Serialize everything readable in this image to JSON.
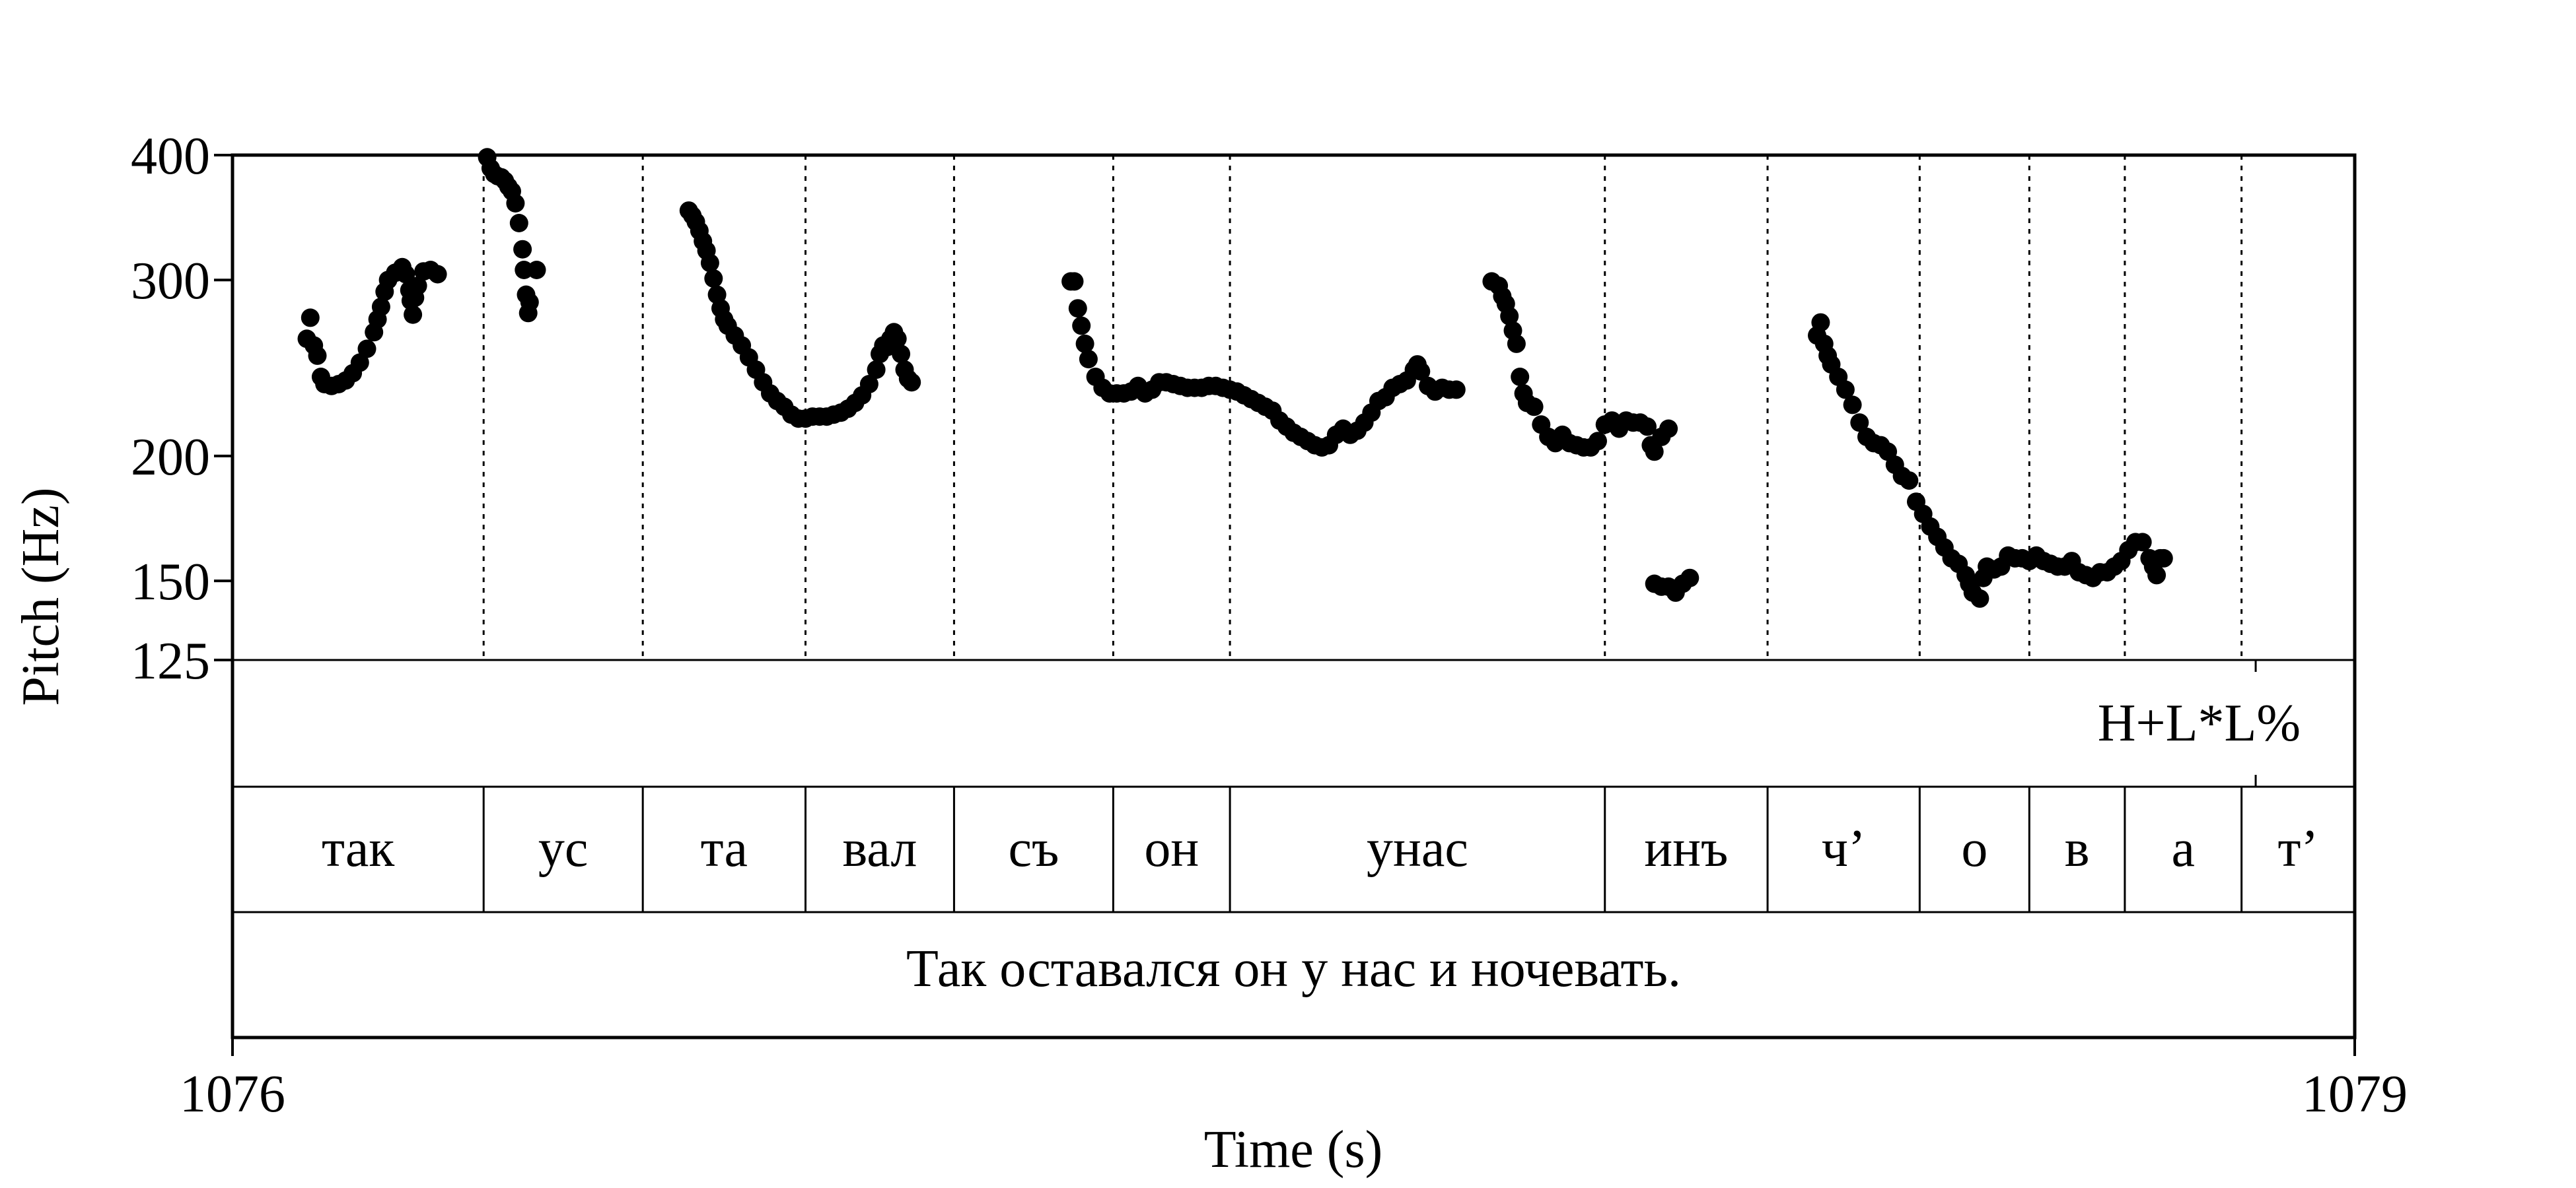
{
  "chart_data": {
    "type": "scatter",
    "xlabel": "Time (s)",
    "ylabel": "Pitch (Hz)",
    "xlim": [
      1076,
      1079
    ],
    "ylim": [
      125,
      400
    ],
    "y_scale": "log",
    "x_ticks": [
      "1076",
      "1079"
    ],
    "y_ticks": [
      {
        "value": 400,
        "label": "400"
      },
      {
        "value": 300,
        "label": "300"
      },
      {
        "value": 200,
        "label": "200"
      },
      {
        "value": 150,
        "label": "150"
      },
      {
        "value": 125,
        "label": "125"
      }
    ],
    "grid": false,
    "series": [
      {
        "points": [
          [
            1076.105,
            262
          ],
          [
            1076.11,
            275
          ],
          [
            1076.115,
            258
          ],
          [
            1076.12,
            252
          ],
          [
            1076.125,
            240
          ],
          [
            1076.13,
            236
          ],
          [
            1076.14,
            235
          ],
          [
            1076.15,
            236
          ],
          [
            1076.16,
            238
          ],
          [
            1076.17,
            242
          ],
          [
            1076.18,
            248
          ],
          [
            1076.19,
            256
          ],
          [
            1076.2,
            266
          ],
          [
            1076.205,
            274
          ],
          [
            1076.21,
            282
          ],
          [
            1076.215,
            292
          ],
          [
            1076.22,
            300
          ],
          [
            1076.23,
            305
          ],
          [
            1076.24,
            309
          ],
          [
            1076.245,
            304
          ],
          [
            1076.25,
            293
          ],
          [
            1076.252,
            286
          ],
          [
            1076.255,
            277
          ],
          [
            1076.258,
            288
          ],
          [
            1076.262,
            296
          ],
          [
            1076.27,
            306
          ],
          [
            1076.28,
            307
          ],
          [
            1076.29,
            304
          ],
          [
            1076.36,
            398
          ],
          [
            1076.365,
            388
          ],
          [
            1076.37,
            383
          ],
          [
            1076.375,
            381
          ],
          [
            1076.38,
            380
          ],
          [
            1076.385,
            377
          ],
          [
            1076.39,
            372
          ],
          [
            1076.395,
            368
          ],
          [
            1076.4,
            358
          ],
          [
            1076.405,
            342
          ],
          [
            1076.41,
            322
          ],
          [
            1076.412,
            307
          ],
          [
            1076.415,
            290
          ],
          [
            1076.418,
            278
          ],
          [
            1076.42,
            285
          ],
          [
            1076.43,
            307
          ],
          [
            1076.645,
            352
          ],
          [
            1076.65,
            348
          ],
          [
            1076.655,
            343
          ],
          [
            1076.66,
            336
          ],
          [
            1076.665,
            328
          ],
          [
            1076.67,
            321
          ],
          [
            1076.675,
            312
          ],
          [
            1076.68,
            301
          ],
          [
            1076.685,
            290
          ],
          [
            1076.69,
            281
          ],
          [
            1076.695,
            274
          ],
          [
            1076.7,
            270
          ],
          [
            1076.71,
            264
          ],
          [
            1076.72,
            258
          ],
          [
            1076.73,
            251
          ],
          [
            1076.74,
            244
          ],
          [
            1076.75,
            237
          ],
          [
            1076.76,
            231
          ],
          [
            1076.77,
            227
          ],
          [
            1076.78,
            224
          ],
          [
            1076.79,
            220
          ],
          [
            1076.8,
            218
          ],
          [
            1076.81,
            218
          ],
          [
            1076.82,
            219
          ],
          [
            1076.83,
            219
          ],
          [
            1076.84,
            219
          ],
          [
            1076.85,
            220
          ],
          [
            1076.86,
            221
          ],
          [
            1076.87,
            223
          ],
          [
            1076.88,
            226
          ],
          [
            1076.89,
            230
          ],
          [
            1076.9,
            236
          ],
          [
            1076.91,
            244
          ],
          [
            1076.915,
            253
          ],
          [
            1076.92,
            258
          ],
          [
            1076.925,
            257
          ],
          [
            1076.93,
            262
          ],
          [
            1076.935,
            266
          ],
          [
            1076.94,
            262
          ],
          [
            1076.945,
            253
          ],
          [
            1076.95,
            244
          ],
          [
            1076.955,
            239
          ],
          [
            1076.96,
            237
          ],
          [
            1077.185,
            299
          ],
          [
            1077.19,
            299
          ],
          [
            1077.195,
            281
          ],
          [
            1077.2,
            270
          ],
          [
            1077.205,
            259
          ],
          [
            1077.21,
            250
          ],
          [
            1077.22,
            240
          ],
          [
            1077.23,
            234
          ],
          [
            1077.24,
            231
          ],
          [
            1077.25,
            231
          ],
          [
            1077.26,
            231
          ],
          [
            1077.27,
            232
          ],
          [
            1077.28,
            235
          ],
          [
            1077.29,
            231
          ],
          [
            1077.3,
            233
          ],
          [
            1077.31,
            237
          ],
          [
            1077.32,
            237
          ],
          [
            1077.33,
            236
          ],
          [
            1077.34,
            235
          ],
          [
            1077.35,
            234
          ],
          [
            1077.36,
            234
          ],
          [
            1077.37,
            234
          ],
          [
            1077.38,
            235
          ],
          [
            1077.39,
            235
          ],
          [
            1077.4,
            234
          ],
          [
            1077.41,
            233
          ],
          [
            1077.42,
            232
          ],
          [
            1077.43,
            230
          ],
          [
            1077.44,
            228
          ],
          [
            1077.45,
            226
          ],
          [
            1077.46,
            224
          ],
          [
            1077.47,
            222
          ],
          [
            1077.48,
            217
          ],
          [
            1077.49,
            214
          ],
          [
            1077.5,
            211
          ],
          [
            1077.51,
            209
          ],
          [
            1077.52,
            207
          ],
          [
            1077.53,
            205
          ],
          [
            1077.54,
            204
          ],
          [
            1077.55,
            205
          ],
          [
            1077.56,
            210
          ],
          [
            1077.57,
            213
          ],
          [
            1077.58,
            210
          ],
          [
            1077.59,
            212
          ],
          [
            1077.6,
            216
          ],
          [
            1077.61,
            221
          ],
          [
            1077.62,
            227
          ],
          [
            1077.63,
            229
          ],
          [
            1077.64,
            234
          ],
          [
            1077.65,
            236
          ],
          [
            1077.66,
            238
          ],
          [
            1077.67,
            244
          ],
          [
            1077.675,
            247
          ],
          [
            1077.68,
            243
          ],
          [
            1077.69,
            235
          ],
          [
            1077.7,
            232
          ],
          [
            1077.71,
            234
          ],
          [
            1077.72,
            233
          ],
          [
            1077.73,
            233
          ],
          [
            1077.78,
            299
          ],
          [
            1077.79,
            296
          ],
          [
            1077.795,
            289
          ],
          [
            1077.8,
            284
          ],
          [
            1077.805,
            276
          ],
          [
            1077.81,
            267
          ],
          [
            1077.815,
            259
          ],
          [
            1077.82,
            240
          ],
          [
            1077.825,
            231
          ],
          [
            1077.83,
            226
          ],
          [
            1077.84,
            224
          ],
          [
            1077.85,
            215
          ],
          [
            1077.86,
            209
          ],
          [
            1077.87,
            206
          ],
          [
            1077.88,
            210
          ],
          [
            1077.89,
            206
          ],
          [
            1077.9,
            205
          ],
          [
            1077.91,
            204
          ],
          [
            1077.92,
            204
          ],
          [
            1077.93,
            207
          ],
          [
            1077.94,
            215
          ],
          [
            1077.95,
            217
          ],
          [
            1077.96,
            213
          ],
          [
            1077.97,
            217
          ],
          [
            1077.98,
            216
          ],
          [
            1077.99,
            216
          ],
          [
            1078.0,
            214
          ],
          [
            1078.005,
            205
          ],
          [
            1078.01,
            202
          ],
          [
            1078.02,
            209
          ],
          [
            1078.03,
            213
          ],
          [
            1078.01,
            149
          ],
          [
            1078.02,
            148
          ],
          [
            1078.03,
            148
          ],
          [
            1078.04,
            146
          ],
          [
            1078.05,
            149
          ],
          [
            1078.06,
            151
          ],
          [
            1078.24,
            264
          ],
          [
            1078.245,
            272
          ],
          [
            1078.25,
            259
          ],
          [
            1078.255,
            252
          ],
          [
            1078.26,
            247
          ],
          [
            1078.27,
            240
          ],
          [
            1078.28,
            233
          ],
          [
            1078.29,
            225
          ],
          [
            1078.3,
            216
          ],
          [
            1078.31,
            209
          ],
          [
            1078.32,
            206
          ],
          [
            1078.33,
            205
          ],
          [
            1078.34,
            202
          ],
          [
            1078.35,
            196
          ],
          [
            1078.36,
            191
          ],
          [
            1078.37,
            189
          ],
          [
            1078.38,
            180
          ],
          [
            1078.39,
            175
          ],
          [
            1078.4,
            170
          ],
          [
            1078.41,
            166
          ],
          [
            1078.42,
            162
          ],
          [
            1078.43,
            158
          ],
          [
            1078.44,
            156
          ],
          [
            1078.45,
            152
          ],
          [
            1078.455,
            149
          ],
          [
            1078.46,
            146
          ],
          [
            1078.47,
            144
          ],
          [
            1078.475,
            151
          ],
          [
            1078.48,
            155
          ],
          [
            1078.49,
            154
          ],
          [
            1078.5,
            155
          ],
          [
            1078.51,
            159
          ],
          [
            1078.52,
            158
          ],
          [
            1078.53,
            158
          ],
          [
            1078.54,
            157
          ],
          [
            1078.55,
            159
          ],
          [
            1078.56,
            157
          ],
          [
            1078.57,
            156
          ],
          [
            1078.58,
            155
          ],
          [
            1078.59,
            155
          ],
          [
            1078.6,
            157
          ],
          [
            1078.61,
            153
          ],
          [
            1078.62,
            152
          ],
          [
            1078.63,
            151
          ],
          [
            1078.64,
            153
          ],
          [
            1078.65,
            153
          ],
          [
            1078.66,
            155
          ],
          [
            1078.67,
            157
          ],
          [
            1078.68,
            161
          ],
          [
            1078.69,
            164
          ],
          [
            1078.7,
            164
          ],
          [
            1078.71,
            158
          ],
          [
            1078.715,
            155
          ],
          [
            1078.72,
            152
          ],
          [
            1078.725,
            158
          ],
          [
            1078.73,
            158
          ]
        ]
      }
    ],
    "annotation_tiers": [
      {
        "name": "tones",
        "intervals": [
          {
            "start": 1076.0,
            "end": 1078.86,
            "text": ""
          },
          {
            "start": 1078.86,
            "end": 1079.0,
            "text": ""
          }
        ],
        "point_labels": [
          {
            "time": 1078.86,
            "text": "H+L*L%"
          }
        ]
      },
      {
        "name": "syllables",
        "intervals": [
          {
            "start": 1076.0,
            "end": 1076.355,
            "text": "так"
          },
          {
            "start": 1076.355,
            "end": 1076.58,
            "text": "ус"
          },
          {
            "start": 1076.58,
            "end": 1076.81,
            "text": "та"
          },
          {
            "start": 1076.81,
            "end": 1077.02,
            "text": "вал"
          },
          {
            "start": 1077.02,
            "end": 1077.245,
            "text": "съ"
          },
          {
            "start": 1077.245,
            "end": 1077.41,
            "text": "он"
          },
          {
            "start": 1077.41,
            "end": 1077.94,
            "text": "унас"
          },
          {
            "start": 1077.94,
            "end": 1078.17,
            "text": "инъ"
          },
          {
            "start": 1078.17,
            "end": 1078.385,
            "text": "ч’"
          },
          {
            "start": 1078.385,
            "end": 1078.54,
            "text": "о"
          },
          {
            "start": 1078.54,
            "end": 1078.675,
            "text": "в"
          },
          {
            "start": 1078.675,
            "end": 1078.84,
            "text": "а"
          },
          {
            "start": 1078.84,
            "end": 1079.0,
            "text": "т’"
          }
        ]
      },
      {
        "name": "sentence",
        "intervals": [
          {
            "start": 1076.0,
            "end": 1079.0,
            "text": "Так оставался он у нас и ночевать."
          }
        ]
      }
    ]
  }
}
